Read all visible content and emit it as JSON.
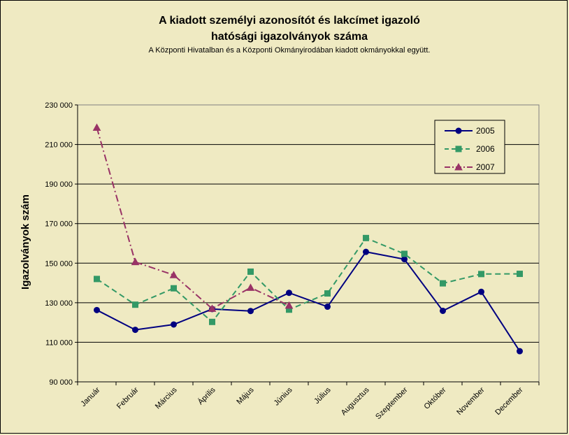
{
  "chart_data": {
    "type": "line",
    "title_line1": "A kiadott személyi azonosítót és lakcímet igazoló",
    "title_line2": "hatósági igazolványok száma",
    "subtitle": "A Központi Hivatalban és a Központi Okmányirodában kiadott okmányokkal együtt.",
    "ylabel": "Igazolványok szám",
    "xlabel": "",
    "ylim": [
      90000,
      230000
    ],
    "yticks": [
      90000,
      110000,
      130000,
      150000,
      170000,
      190000,
      210000,
      230000
    ],
    "ytick_labels": [
      "90 000",
      "110 000",
      "130 000",
      "150 000",
      "170 000",
      "190 000",
      "210 000",
      "230 000"
    ],
    "categories": [
      "Január",
      "Február",
      "Március",
      "Április",
      "Május",
      "Június",
      "Július",
      "Augusztus",
      "Szeptember",
      "Október",
      "November",
      "December"
    ],
    "grid": "horizontal",
    "legend_position": "top-right",
    "series": [
      {
        "name": "2005",
        "color": "#000080",
        "marker": "circle",
        "dash": "solid",
        "values": [
          126300,
          116300,
          119000,
          126800,
          125800,
          135000,
          128000,
          155700,
          152000,
          125900,
          135500,
          105500
        ]
      },
      {
        "name": "2006",
        "color": "#339966",
        "marker": "square",
        "dash": "dashed",
        "values": [
          142000,
          129000,
          137300,
          120300,
          145700,
          126500,
          134700,
          162700,
          154700,
          139800,
          144500,
          144600
        ]
      },
      {
        "name": "2007",
        "color": "#993366",
        "marker": "triangle",
        "dash": "dashdot",
        "values": [
          218500,
          150600,
          144000,
          127000,
          137600,
          128600,
          null,
          null,
          null,
          null,
          null,
          null
        ]
      }
    ]
  }
}
